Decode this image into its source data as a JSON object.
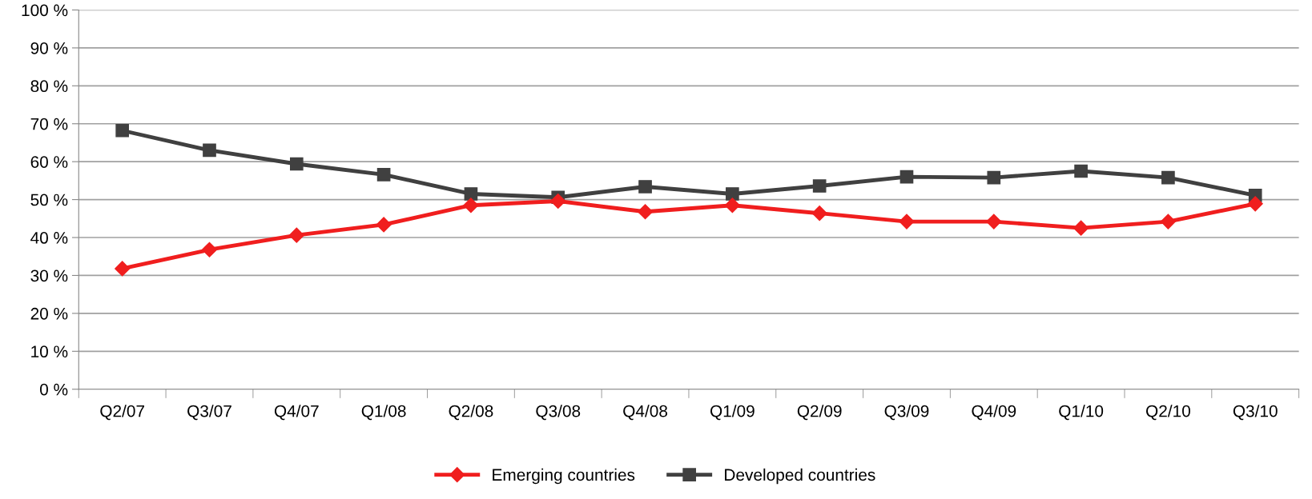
{
  "chart_data": {
    "type": "line",
    "categories": [
      "Q2/07",
      "Q3/07",
      "Q4/07",
      "Q1/08",
      "Q2/08",
      "Q3/08",
      "Q4/08",
      "Q1/09",
      "Q2/09",
      "Q3/09",
      "Q4/09",
      "Q1/10",
      "Q2/10",
      "Q3/10"
    ],
    "series": [
      {
        "name": "Emerging countries",
        "color": "#f01e1e",
        "marker": "diamond",
        "values": [
          31.8,
          36.8,
          40.6,
          43.4,
          48.5,
          49.6,
          46.8,
          48.5,
          46.4,
          44.2,
          44.2,
          42.5,
          44.2,
          48.9
        ]
      },
      {
        "name": "Developed countries",
        "color": "#404040",
        "marker": "square",
        "values": [
          68.2,
          63.0,
          59.4,
          56.6,
          51.5,
          50.6,
          53.4,
          51.5,
          53.6,
          56.0,
          55.8,
          57.5,
          55.8,
          51.1
        ]
      }
    ],
    "ylim": [
      0,
      100
    ],
    "yticks": [
      {
        "value": 0,
        "label": "0 %"
      },
      {
        "value": 10,
        "label": "10 %"
      },
      {
        "value": 20,
        "label": "20 %"
      },
      {
        "value": 30,
        "label": "30 %"
      },
      {
        "value": 40,
        "label": "40 %"
      },
      {
        "value": 50,
        "label": "50 %"
      },
      {
        "value": 60,
        "label": "60 %"
      },
      {
        "value": 70,
        "label": "70 %"
      },
      {
        "value": 80,
        "label": "80 %"
      },
      {
        "value": 90,
        "label": "90 %"
      },
      {
        "value": 100,
        "label": "100 %"
      }
    ],
    "grid": "y",
    "legend": "bottom",
    "line_style": "solid"
  }
}
